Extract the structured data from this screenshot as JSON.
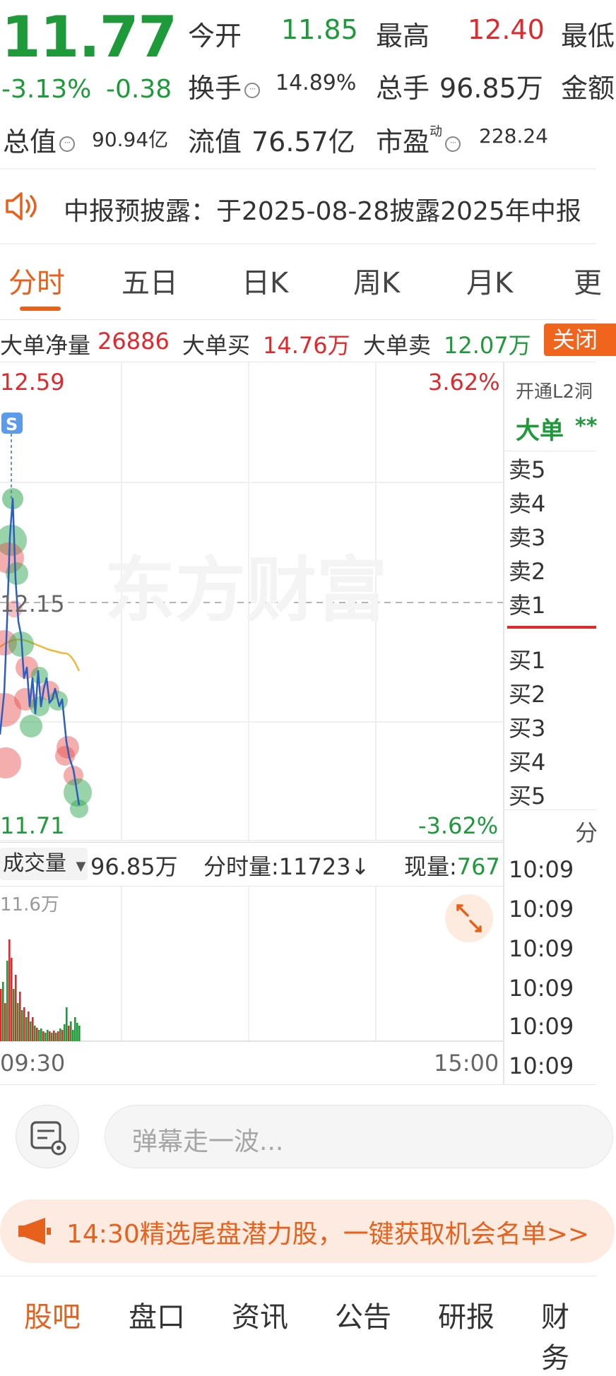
{
  "quote": {
    "price": "11.77",
    "change_pct": "-3.13%",
    "change_amt": "-0.38",
    "open_label": "今开",
    "open_value": "11.85",
    "high_label": "最高",
    "high_value": "12.40",
    "low_label_partial": "最低",
    "turnover_label": "换手",
    "turnover_value": "14.89%",
    "volume_label": "总手",
    "volume_value": "96.85万",
    "amount_label_partial": "金额",
    "mcap_label": "总值",
    "mcap_value": "90.94亿",
    "float_label": "流值",
    "float_value": "76.57亿",
    "pe_label": "市盈",
    "pe_sup": "动",
    "pe_value": "228.24"
  },
  "notice": {
    "text": "中报预披露：于2025-08-28披露2025年中报"
  },
  "tabs": [
    {
      "label": "分时",
      "active": true
    },
    {
      "label": "五日"
    },
    {
      "label": "日K"
    },
    {
      "label": "周K"
    },
    {
      "label": "月K"
    },
    {
      "label": "更"
    }
  ],
  "big_orders": {
    "net_label": "大单净量",
    "net_value": "26886",
    "buy_label": "大单买",
    "buy_value": "14.76万",
    "sell_label": "大单卖",
    "sell_value": "12.07万",
    "close_label": "关闭"
  },
  "chart": {
    "top_price": "12.59",
    "bottom_price": "11.71",
    "top_pct": "3.62%",
    "bottom_pct": "-3.62%",
    "mid_price": "12.15",
    "s_marker": "S",
    "watermark": "东方财富",
    "time_start": "09:30",
    "time_end": "15:00"
  },
  "volume_bar": {
    "selector_label": "成交量",
    "total": "96.85万",
    "minute_label": "分时量:",
    "minute_value": "11723↓",
    "now_label": "现量:",
    "now_value": "767",
    "max_label": "11.6万"
  },
  "orderbook": {
    "l2_label": "开通L2洞",
    "big_label": "大单",
    "big_value": "**",
    "sells": [
      "卖5",
      "卖4",
      "卖3",
      "卖2",
      "卖1"
    ],
    "buys": [
      "买1",
      "买2",
      "买3",
      "买4",
      "买5"
    ],
    "ticks_header": "分",
    "ticks": [
      "10:09",
      "10:09",
      "10:09",
      "10:09",
      "10:09",
      "10:09"
    ]
  },
  "comment": {
    "placeholder": "弹幕走一波..."
  },
  "promo": {
    "text": "14:30精选尾盘潜力股，一键获取机会名单>>"
  },
  "bottom_nav": [
    "股吧",
    "盘口",
    "资讯",
    "公告",
    "研报",
    "财务"
  ],
  "colors": {
    "up": "#e0282d",
    "down": "#1e9a3a",
    "accent": "#e8611c",
    "line": "#2a5fc1",
    "avg": "#f0b83a"
  }
}
